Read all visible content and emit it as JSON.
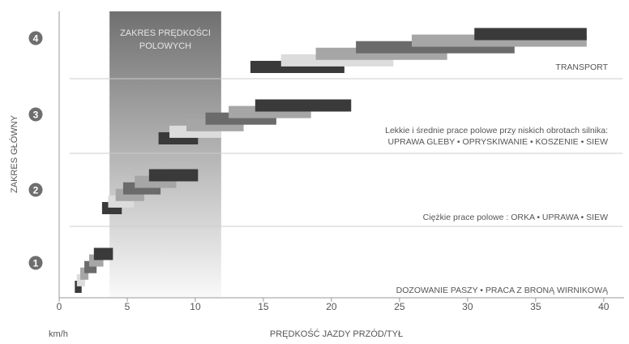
{
  "chart_data": {
    "type": "bar",
    "xlabel": "PRĘDKOŚĆ JAZDY PRZÓD/TYŁ",
    "ylabel": "ZAKRES GŁÓWNY",
    "x_unit": "km/h",
    "xlim": [
      0,
      41.5
    ],
    "x_ticks": [
      0,
      5,
      10,
      15,
      20,
      25,
      30,
      35,
      40
    ],
    "gears": [
      "1",
      "2",
      "3",
      "4"
    ],
    "field_zone": {
      "label_line1": "ZAKRES PRĘDKOŚCI",
      "label_line2": "POLOWYCH",
      "x_range": [
        3.7,
        11.9
      ]
    },
    "annotations": [
      {
        "id": "transport",
        "lines": [
          "TRANSPORT"
        ]
      },
      {
        "id": "light",
        "lines": [
          "Lekkie i średnie prace polowe przy niskich obrotach silnika:",
          "UPRAWA GLEBY • OPRYSKIWANIE • KOSZENIE • SIEW"
        ]
      },
      {
        "id": "heavy",
        "lines": [
          "Ciężkie prace polowe : ORKA • UPRAWA • SIEW"
        ]
      },
      {
        "id": "feed",
        "lines": [
          "DOZOWANIE PASZY • PRACA Z BRONĄ WIRNIKOWĄ"
        ]
      }
    ],
    "colors": {
      "dark": "#3a3a3a",
      "mid": "#6b6b6b",
      "light": "#a6a6a6",
      "pale": "#dcdcdc",
      "zone": "#7a7a7a",
      "grid": "#cccccc"
    },
    "series": [
      {
        "gear": 1,
        "level": 0.0,
        "range": [
          1.15,
          1.65
        ],
        "shade": "dark"
      },
      {
        "gear": 1,
        "level": 0.5,
        "range": [
          1.3,
          1.9
        ],
        "shade": "pale"
      },
      {
        "gear": 1,
        "level": 1.0,
        "range": [
          1.55,
          2.15
        ],
        "shade": "light"
      },
      {
        "gear": 1,
        "level": 1.5,
        "range": [
          1.85,
          2.75
        ],
        "shade": "mid"
      },
      {
        "gear": 1,
        "level": 2.0,
        "range": [
          2.2,
          3.25
        ],
        "shade": "light"
      },
      {
        "gear": 1,
        "level": 2.5,
        "range": [
          2.55,
          3.95
        ],
        "shade": "dark"
      },
      {
        "gear": 2,
        "level": 0.0,
        "range": [
          3.15,
          4.6
        ],
        "shade": "dark"
      },
      {
        "gear": 2,
        "level": 0.5,
        "range": [
          3.6,
          5.5
        ],
        "shade": "pale"
      },
      {
        "gear": 2,
        "level": 1.0,
        "range": [
          4.15,
          6.25
        ],
        "shade": "light"
      },
      {
        "gear": 2,
        "level": 1.5,
        "range": [
          4.7,
          7.45
        ],
        "shade": "mid"
      },
      {
        "gear": 2,
        "level": 2.0,
        "range": [
          5.55,
          8.6
        ],
        "shade": "light"
      },
      {
        "gear": 2,
        "level": 2.5,
        "range": [
          6.6,
          10.2
        ],
        "shade": "dark"
      },
      {
        "gear": 3,
        "level": 0.0,
        "range": [
          7.3,
          10.2
        ],
        "shade": "dark"
      },
      {
        "gear": 3,
        "level": 0.5,
        "range": [
          8.1,
          11.9
        ],
        "shade": "pale"
      },
      {
        "gear": 3,
        "level": 1.0,
        "range": [
          9.35,
          13.55
        ],
        "shade": "light"
      },
      {
        "gear": 3,
        "level": 1.5,
        "range": [
          10.75,
          15.95
        ],
        "shade": "mid"
      },
      {
        "gear": 3,
        "level": 2.0,
        "range": [
          12.45,
          18.5
        ],
        "shade": "light"
      },
      {
        "gear": 3,
        "level": 2.5,
        "range": [
          14.4,
          21.45
        ],
        "shade": "dark"
      },
      {
        "gear": 4,
        "level": 0.0,
        "range": [
          14.05,
          20.95
        ],
        "shade": "dark"
      },
      {
        "gear": 4,
        "level": 0.5,
        "range": [
          16.3,
          24.55
        ],
        "shade": "pale"
      },
      {
        "gear": 4,
        "level": 1.0,
        "range": [
          18.85,
          28.5
        ],
        "shade": "light"
      },
      {
        "gear": 4,
        "level": 1.5,
        "range": [
          21.8,
          33.45
        ],
        "shade": "mid"
      },
      {
        "gear": 4,
        "level": 2.0,
        "range": [
          25.9,
          38.75
        ],
        "shade": "light"
      },
      {
        "gear": 4,
        "level": 2.5,
        "range": [
          30.5,
          38.75
        ],
        "shade": "dark"
      }
    ]
  }
}
